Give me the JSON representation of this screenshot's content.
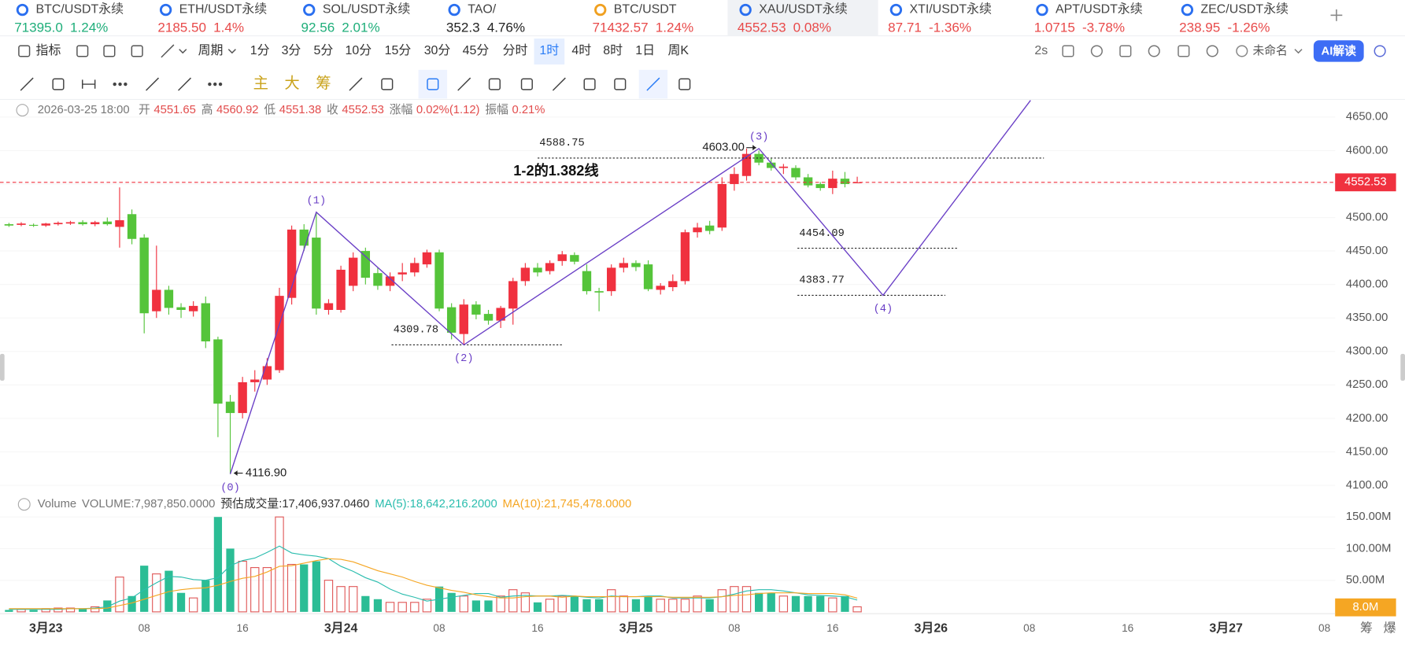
{
  "tickers": [
    {
      "name": "BTC/USDT永续",
      "price": "71395.0",
      "change": "1.24%",
      "color": "#1fae7a"
    },
    {
      "name": "ETH/USDT永续",
      "price": "2185.50",
      "change": "1.4%",
      "color": "#e84a4a"
    },
    {
      "name": "SOL/USDT永续",
      "price": "92.56",
      "change": "2.01%",
      "color": "#1fae7a"
    },
    {
      "name": "TAO/",
      "price": "352.3",
      "change": "4.76%",
      "color": "#222222"
    },
    {
      "name": "BTC/USDT",
      "price": "71432.57",
      "change": "1.24%",
      "color": "#e84a4a"
    },
    {
      "name": "XAU/USDT永续",
      "price": "4552.53",
      "change": "0.08%",
      "color": "#e84a4a",
      "active": true
    },
    {
      "name": "XTI/USDT永续",
      "price": "87.71",
      "change": "-1.36%",
      "color": "#e84a4a"
    },
    {
      "name": "APT/USDT永续",
      "price": "1.0715",
      "change": "-3.78%",
      "color": "#e84a4a"
    },
    {
      "name": "ZEC/USDT永续",
      "price": "238.95",
      "change": "-1.26%",
      "color": "#e84a4a"
    }
  ],
  "toolbar": {
    "indicators": "指标",
    "period": "周期",
    "intervals": [
      {
        "label": "1分"
      },
      {
        "label": "3分"
      },
      {
        "label": "5分"
      },
      {
        "label": "10分"
      },
      {
        "label": "15分"
      },
      {
        "label": "30分"
      },
      {
        "label": "45分"
      },
      {
        "label": "分时"
      },
      {
        "label": "1时",
        "active": true
      },
      {
        "label": "4时"
      },
      {
        "label": "8时"
      },
      {
        "label": "1日"
      },
      {
        "label": "周K"
      }
    ],
    "refresh": "2s",
    "layout_name": "未命名",
    "ai": "AI解读"
  },
  "drawing_tools": {
    "chips": [
      "主",
      "大",
      "筹"
    ]
  },
  "chart_data": {
    "type": "candlestick",
    "info": {
      "time": "2026-03-25 18:00",
      "open_label": "开",
      "high_label": "高",
      "low_label": "低",
      "close_label": "收",
      "change_label": "涨幅",
      "change": "0.02%(1.12)",
      "amplitude_label": "振幅",
      "amplitude": "0.21%"
    },
    "candles": {
      "open": [
        4490,
        4489,
        4489,
        4488,
        4490,
        4491,
        4493,
        4490,
        4494,
        4486,
        4505,
        4470,
        4360,
        4392,
        4366,
        4360,
        4372,
        4318,
        4225,
        4208,
        4254,
        4258,
        4272,
        4380,
        4482,
        4470,
        4362,
        4362,
        4398,
        4450,
        4417,
        4398,
        4415,
        4418,
        4430,
        4448,
        4366,
        4326,
        4370,
        4356,
        4346,
        4364,
        4405,
        4425,
        4420,
        4435,
        4444,
        4420,
        4390,
        4390,
        4425,
        4432,
        4430,
        4392,
        4396,
        4405,
        4478,
        4488,
        4485,
        4550,
        4562,
        4595,
        4582,
        4574,
        4574,
        4560,
        4550,
        4544,
        4558,
        4551.65
      ],
      "high": [
        4492,
        4493,
        4491,
        4492,
        4494,
        4495,
        4496,
        4495,
        4500,
        4545,
        4512,
        4475,
        4458,
        4398,
        4372,
        4375,
        4382,
        4322,
        4235,
        4262,
        4272,
        4290,
        4395,
        4488,
        4490,
        4508,
        4378,
        4428,
        4448,
        4455,
        4425,
        4418,
        4432,
        4440,
        4452,
        4452,
        4372,
        4378,
        4375,
        4362,
        4368,
        4410,
        4432,
        4432,
        4436,
        4450,
        4448,
        4430,
        4395,
        4430,
        4440,
        4436,
        4436,
        4402,
        4415,
        4482,
        4492,
        4495,
        4560,
        4575,
        4603,
        4600,
        4588,
        4580,
        4578,
        4565,
        4553,
        4570,
        4568,
        4560.92
      ],
      "low": [
        4486,
        4487,
        4486,
        4486,
        4488,
        4489,
        4488,
        4487,
        4488,
        4455,
        4460,
        4327,
        4350,
        4355,
        4350,
        4352,
        4305,
        4172,
        4116.9,
        4200,
        4240,
        4250,
        4268,
        4370,
        4450,
        4355,
        4355,
        4358,
        4390,
        4400,
        4392,
        4390,
        4405,
        4412,
        4425,
        4360,
        4318,
        4309.78,
        4348,
        4340,
        4335,
        4340,
        4398,
        4412,
        4415,
        4428,
        4430,
        4385,
        4360,
        4383,
        4418,
        4420,
        4390,
        4385,
        4390,
        4400,
        4470,
        4475,
        4480,
        4540,
        4555,
        4578,
        4570,
        4565,
        4556,
        4545,
        4540,
        4535,
        4545,
        4551.38
      ],
      "close": [
        4488,
        4491,
        4488,
        4491,
        4492,
        4493,
        4490,
        4493,
        4490,
        4496,
        4468,
        4357,
        4392,
        4365,
        4362,
        4368,
        4315,
        4222,
        4208,
        4254,
        4258,
        4278,
        4383,
        4482,
        4458,
        4364,
        4372,
        4422,
        4440,
        4410,
        4398,
        4412,
        4418,
        4432,
        4448,
        4364,
        4328,
        4370,
        4355,
        4346,
        4365,
        4405,
        4425,
        4418,
        4432,
        4445,
        4434,
        4390,
        4388,
        4425,
        4432,
        4426,
        4393,
        4398,
        4405,
        4478,
        4485,
        4480,
        4550,
        4565,
        4595,
        4582,
        4574,
        4576,
        4560,
        4548,
        4544,
        4558,
        4550,
        4552.53
      ]
    },
    "up_color": "#f0313f",
    "down_color": "#55c43a",
    "ylim": [
      4089,
      4675
    ],
    "yticks": [
      {
        "value": 4650,
        "label": "4650.00"
      },
      {
        "value": 4600,
        "label": "4600.00"
      },
      {
        "value": 4550,
        "label": "4550.00"
      },
      {
        "value": 4500,
        "label": "4500.00"
      },
      {
        "value": 4450,
        "label": "4450.00"
      },
      {
        "value": 4400,
        "label": "4400.00"
      },
      {
        "value": 4350,
        "label": "4350.00"
      },
      {
        "value": 4300,
        "label": "4300.00"
      },
      {
        "value": 4250,
        "label": "4250.00"
      },
      {
        "value": 4200,
        "label": "4200.00"
      },
      {
        "value": 4150,
        "label": "4150.00"
      },
      {
        "value": 4100,
        "label": "4100.00"
      }
    ],
    "grid": true,
    "levels": [
      {
        "value": 4588.75,
        "note": "1-2的1.382线"
      },
      {
        "value": 4454.09
      },
      {
        "value": 4383.77
      },
      {
        "value": 4309.78
      }
    ],
    "waves": [
      {
        "label": "(0)",
        "value": 4116.9,
        "value_label": "4116.90"
      },
      {
        "label": "(1)",
        "value": 4508
      },
      {
        "label": "(2)",
        "value": 4309.78
      },
      {
        "label": "(3)",
        "value": 4603,
        "value_label": "4603.00"
      },
      {
        "label": "(4)",
        "value": 4383.77
      },
      {
        "value": 4675
      }
    ],
    "wave_color": "#6a3fc6",
    "x_labels": [
      "3月23",
      "08",
      "16",
      "3月24",
      "08",
      "16",
      "3月25",
      "08",
      "16",
      "3月26",
      "08",
      "16",
      "3月27",
      "08"
    ],
    "volume": {
      "title": "Volume",
      "readouts": [
        "VOLUME:7,987,850.0000",
        "预估成交量:17,406,937.0460"
      ],
      "values": [
        3000000,
        4000000,
        3000000,
        5000000,
        6000000,
        6000000,
        5000000,
        8000000,
        18000000,
        55000000,
        25000000,
        73000000,
        60000000,
        65000000,
        30000000,
        22000000,
        50000000,
        150000000,
        100000000,
        80000000,
        70000000,
        70000000,
        150000000,
        75000000,
        75000000,
        80000000,
        50000000,
        40000000,
        40000000,
        25000000,
        20000000,
        15000000,
        15000000,
        15000000,
        20000000,
        40000000,
        30000000,
        25000000,
        18000000,
        18000000,
        25000000,
        35000000,
        30000000,
        15000000,
        20000000,
        25000000,
        25000000,
        20000000,
        20000000,
        35000000,
        25000000,
        20000000,
        25000000,
        20000000,
        20000000,
        20000000,
        25000000,
        20000000,
        35000000,
        40000000,
        40000000,
        30000000,
        30000000,
        25000000,
        25000000,
        25000000,
        25000000,
        22000000,
        25000000,
        7987850
      ],
      "last_label": "8.0M",
      "last_color": "#f5a623",
      "up_color": "#e05a5a",
      "down_color": "#2bbd95",
      "ma": [
        {
          "readout": "MA(5):18,642,216.2000",
          "color": "#2bbdae",
          "values": [
            4000000,
            4000000,
            4000000,
            4000000,
            4000000,
            5000000,
            5000000,
            6000000,
            8000000,
            17000000,
            22000000,
            35000000,
            46000000,
            56000000,
            55000000,
            51000000,
            50000000,
            54000000,
            73000000,
            81000000,
            85000000,
            94000000,
            104000000,
            93000000,
            90000000,
            88000000,
            84000000,
            72000000,
            64000000,
            54000000,
            47000000,
            36000000,
            28000000,
            23000000,
            17000000,
            20000000,
            23000000,
            26000000,
            29000000,
            29000000,
            23000000,
            25000000,
            26000000,
            25000000,
            25000000,
            26000000,
            25000000,
            23000000,
            22000000,
            25000000,
            24000000,
            24000000,
            25000000,
            25000000,
            22000000,
            22000000,
            22000000,
            22000000,
            24000000,
            28000000,
            33000000,
            35000000,
            35000000,
            33000000,
            30000000,
            27000000,
            26000000,
            25000000,
            24000000,
            18642216.2
          ]
        },
        {
          "readout": "MA(10):21,745,478.0000",
          "color": "#f5a623",
          "values": [
            5000000,
            5000000,
            5000000,
            5000000,
            5000000,
            5000000,
            5000000,
            5000000,
            6000000,
            10000000,
            14000000,
            20000000,
            26000000,
            32000000,
            35000000,
            37000000,
            38000000,
            42000000,
            48000000,
            53000000,
            56000000,
            63000000,
            72000000,
            73000000,
            77000000,
            81000000,
            84000000,
            83000000,
            79000000,
            72000000,
            65000000,
            60000000,
            55000000,
            48000000,
            42000000,
            38000000,
            34000000,
            31000000,
            27000000,
            24000000,
            22000000,
            22000000,
            24000000,
            25000000,
            25000000,
            23000000,
            25000000,
            24000000,
            24000000,
            24000000,
            24000000,
            24000000,
            24000000,
            24000000,
            23000000,
            23000000,
            23000000,
            23000000,
            24000000,
            26000000,
            27000000,
            29000000,
            30000000,
            30000000,
            30000000,
            29000000,
            29000000,
            29000000,
            27000000,
            21745478
          ]
        }
      ],
      "ylim": [
        0,
        160000000
      ],
      "yticks": [
        {
          "value": 150000000,
          "label": "150.00M"
        },
        {
          "value": 100000000,
          "label": "100.00M"
        },
        {
          "value": 50000000,
          "label": "50.00M"
        }
      ]
    },
    "corner_labels": [
      "筹",
      "爆"
    ]
  }
}
